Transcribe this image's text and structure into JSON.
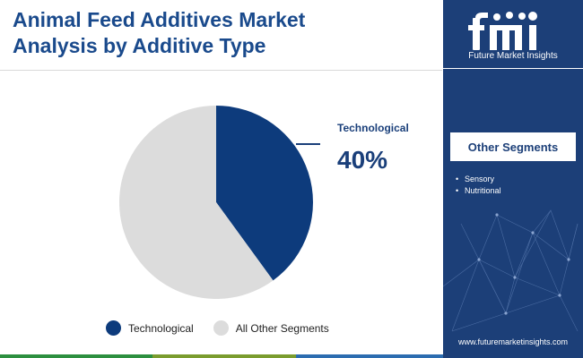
{
  "title": {
    "line1": "Animal Feed Additives Market",
    "line2": "Analysis by Additive Type"
  },
  "chart_data": {
    "type": "pie",
    "title": "Animal Feed Additives Market Analysis by Additive Type",
    "categories": [
      "Technological",
      "All Other Segments"
    ],
    "values": [
      40,
      60
    ],
    "unit": "%",
    "colors": [
      "#0d3b7c",
      "#dcdcdc"
    ],
    "start_angle_deg": 0,
    "legend_position": "bottom",
    "callout": {
      "label": "Technological",
      "value": "40%"
    }
  },
  "sidebar": {
    "brand": "Future Market Insights",
    "other_segments_title": "Other Segments",
    "other_segments": [
      "Sensory",
      "Nutritional"
    ],
    "website": "www.futuremarketinsights.com",
    "background_color": "#1c3f78"
  },
  "bottom_bar_colors": [
    "#2c8f3f",
    "#7a9c2e",
    "#2b6cb0",
    "#7b2a84",
    "#c0392b"
  ]
}
